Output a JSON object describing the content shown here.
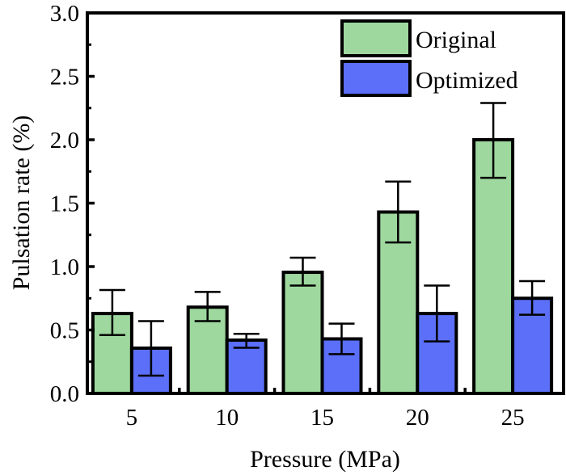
{
  "chart_data": {
    "type": "bar",
    "title": "",
    "xlabel": "Pressure (MPa)",
    "ylabel": "Pulsation rate (%)",
    "categories": [
      "5",
      "10",
      "15",
      "20",
      "25"
    ],
    "ylim": [
      0.0,
      3.0
    ],
    "yticks": [
      "0.0",
      "0.5",
      "1.0",
      "1.5",
      "2.0",
      "2.5",
      "3.0"
    ],
    "grid": false,
    "legend_position": "top-right",
    "series": [
      {
        "name": "Original",
        "color": "#9ED89E",
        "values": [
          0.63,
          0.68,
          0.955,
          1.43,
          2.0
        ],
        "error_low": [
          0.46,
          0.57,
          0.85,
          1.19,
          1.7
        ],
        "error_high": [
          0.815,
          0.8,
          1.07,
          1.67,
          2.29
        ]
      },
      {
        "name": "Optimized",
        "color": "#5B6FF8",
        "values": [
          0.357,
          0.42,
          0.43,
          0.63,
          0.75
        ],
        "error_low": [
          0.14,
          0.36,
          0.31,
          0.41,
          0.62
        ],
        "error_high": [
          0.57,
          0.47,
          0.55,
          0.85,
          0.885
        ]
      }
    ]
  }
}
